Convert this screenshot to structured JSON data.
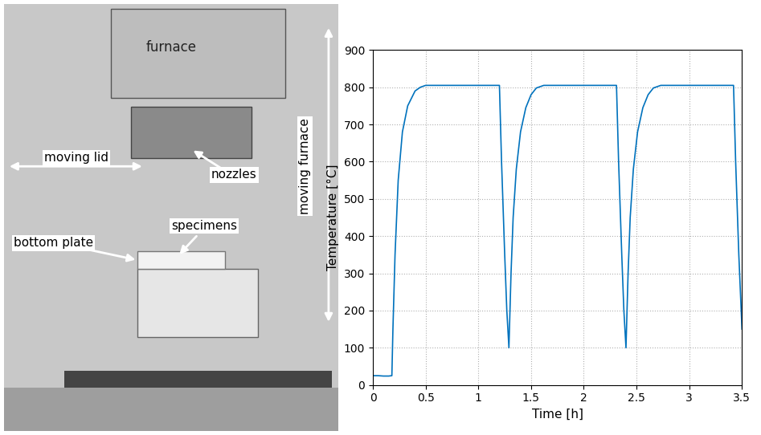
{
  "photo": {
    "labels": [
      "furnace",
      "moving lid",
      "nozzles",
      "specimens",
      "bottom plate",
      "moving furnace"
    ]
  },
  "chart_data": {
    "type": "line",
    "x_label": "Time [h]",
    "y_label": "Temperature [°C]",
    "x": [
      0,
      0.05,
      0.1,
      0.15,
      0.18,
      0.19,
      0.21,
      0.24,
      0.28,
      0.33,
      0.4,
      0.45,
      0.5,
      0.8,
      1.19,
      1.2,
      1.22,
      1.25,
      1.27,
      1.29,
      1.31,
      1.33,
      1.36,
      1.4,
      1.45,
      1.5,
      1.55,
      1.62,
      2.0,
      2.3,
      2.31,
      2.33,
      2.36,
      2.38,
      2.4,
      2.42,
      2.44,
      2.47,
      2.51,
      2.56,
      2.61,
      2.66,
      2.73,
      3.1,
      3.41,
      3.42,
      3.44,
      3.47,
      3.5
    ],
    "values": [
      25,
      25,
      24,
      24,
      25,
      150,
      350,
      550,
      680,
      750,
      790,
      800,
      805,
      805,
      805,
      805,
      600,
      350,
      200,
      100,
      300,
      450,
      580,
      680,
      745,
      780,
      798,
      805,
      805,
      805,
      805,
      600,
      350,
      200,
      100,
      300,
      450,
      580,
      680,
      745,
      780,
      798,
      805,
      805,
      805,
      805,
      600,
      350,
      150
    ],
    "color": "#0072bd",
    "xlim": [
      0,
      3.5
    ],
    "xticks": [
      0,
      0.5,
      1,
      1.5,
      2,
      2.5,
      3,
      3.5
    ],
    "ylim": [
      0,
      900
    ],
    "yticks": [
      0,
      100,
      200,
      300,
      400,
      500,
      600,
      700,
      800,
      900
    ],
    "grid": true
  }
}
